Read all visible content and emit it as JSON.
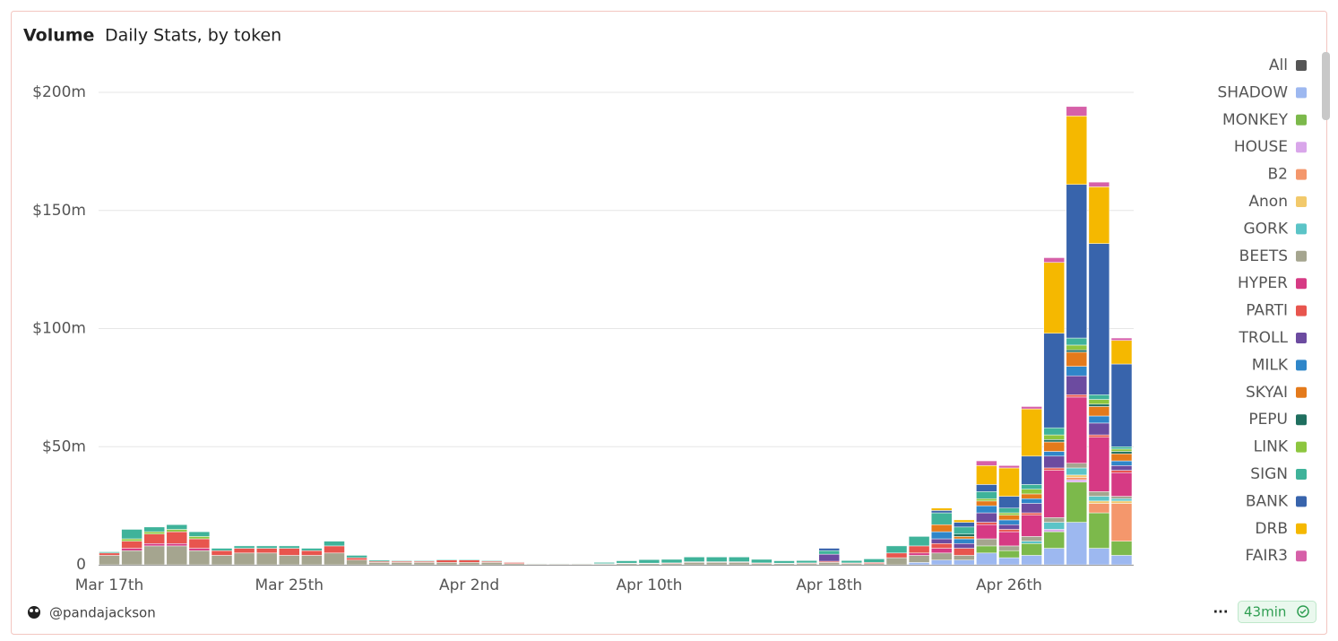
{
  "header": {
    "title": "Volume",
    "subtitle": "Daily Stats, by token"
  },
  "footer": {
    "author": "@pandajackson",
    "menu": "···",
    "refresh": "43min"
  },
  "legend_all": {
    "name": "All",
    "color": "#555555"
  },
  "chart_data": {
    "type": "stacked_bar",
    "categories": [
      "Mar 17th",
      null,
      null,
      null,
      null,
      null,
      null,
      null,
      "Mar 25th",
      null,
      null,
      null,
      null,
      null,
      null,
      null,
      "Apr 2nd",
      null,
      null,
      null,
      null,
      null,
      null,
      null,
      "Apr 10th",
      null,
      null,
      null,
      null,
      null,
      null,
      null,
      "Apr 18th",
      null,
      null,
      null,
      null,
      null,
      null,
      null,
      "Apr 26th",
      null,
      null,
      null,
      null,
      null
    ],
    "ylim": [
      0,
      210
    ],
    "yticks": [
      0,
      {
        "value": 50,
        "label": "$50m"
      },
      {
        "value": 100,
        "label": "$100m"
      },
      {
        "value": 150,
        "label": "$150m"
      },
      {
        "value": 200,
        "label": "$200m"
      }
    ],
    "grid": true,
    "legend": "right",
    "series": [
      {
        "name": "SHADOW",
        "color": "#9db8f0",
        "values": [
          0,
          0,
          0,
          0,
          0,
          0,
          0,
          0,
          0,
          0,
          0,
          0,
          0,
          0,
          0,
          0,
          0,
          0,
          0,
          0,
          0,
          0,
          0,
          0,
          0,
          0,
          0,
          0,
          0,
          0,
          0,
          0,
          0,
          0,
          0,
          0,
          1,
          2,
          2,
          5,
          3,
          4,
          7,
          18,
          7,
          4
        ]
      },
      {
        "name": "MONKEY",
        "color": "#7cb94b",
        "values": [
          0,
          0,
          0,
          0,
          0,
          0,
          0,
          0,
          0,
          0,
          0,
          0,
          0,
          0,
          0,
          0,
          0,
          0,
          0,
          0,
          0,
          0,
          0,
          0,
          0,
          0,
          0,
          0,
          0,
          0,
          0,
          0,
          0,
          0,
          0,
          0,
          0,
          0,
          0,
          3,
          3,
          5,
          7,
          17,
          15,
          6
        ]
      },
      {
        "name": "HOUSE",
        "color": "#d9a6ea",
        "values": [
          0,
          0,
          0,
          0,
          0,
          0,
          0,
          0,
          0,
          0,
          0,
          0,
          0,
          0,
          0,
          0,
          0,
          0,
          0,
          0,
          0,
          0,
          0,
          0,
          0,
          0,
          0,
          0,
          0,
          0,
          0,
          0,
          0,
          0,
          0,
          0,
          0,
          0,
          0,
          0,
          0,
          0,
          1,
          1,
          0,
          0
        ]
      },
      {
        "name": "B2",
        "color": "#f4976c",
        "values": [
          0,
          0,
          0,
          0,
          0,
          0,
          0,
          0,
          0,
          0,
          0,
          0,
          0,
          0,
          0,
          0,
          0,
          0,
          0,
          0,
          0,
          0,
          0,
          0,
          0,
          0,
          0,
          0,
          0,
          0,
          0,
          0,
          0,
          0,
          0,
          0,
          0,
          0,
          0,
          0,
          0,
          0,
          0,
          1,
          4,
          16
        ]
      },
      {
        "name": "Anon",
        "color": "#f2c96b",
        "values": [
          0,
          0,
          0,
          0,
          0,
          0,
          0,
          0,
          0,
          0,
          0,
          0,
          0,
          0,
          0,
          0,
          0,
          0,
          0,
          0,
          0,
          0,
          0,
          0,
          0,
          0,
          0,
          0,
          0,
          0,
          0,
          0,
          0,
          0,
          0,
          0,
          0,
          0,
          0,
          0,
          0,
          0,
          0,
          1,
          1,
          1
        ]
      },
      {
        "name": "GORK",
        "color": "#5bc4c7",
        "values": [
          0,
          0,
          0,
          0,
          0,
          0,
          0,
          0,
          0,
          0,
          0,
          0,
          0,
          0,
          0,
          0,
          0,
          0,
          0,
          0,
          0,
          0,
          0,
          0,
          0,
          0,
          0,
          0,
          0,
          0,
          0,
          0,
          0,
          0,
          0,
          0,
          0,
          0,
          0,
          0,
          0,
          1,
          3,
          3,
          2,
          1
        ]
      },
      {
        "name": "BEETS",
        "color": "#a5a58f",
        "values": [
          4,
          6,
          8,
          8,
          6,
          4,
          5,
          5,
          4,
          4,
          5,
          2,
          1,
          1,
          1,
          1,
          1,
          1,
          0.5,
          0.3,
          0.3,
          0.3,
          0.3,
          0.5,
          0.5,
          0.5,
          1,
          1,
          1,
          0.5,
          0.5,
          0.5,
          1,
          0.5,
          0.5,
          3,
          3,
          3,
          2,
          3,
          2,
          2,
          2,
          2,
          2,
          1
        ]
      },
      {
        "name": "HYPER",
        "color": "#d63a84",
        "values": [
          0,
          1,
          1,
          1,
          1,
          0,
          0,
          0,
          0,
          0,
          0,
          0,
          0,
          0,
          0,
          0,
          0,
          0,
          0,
          0,
          0,
          0,
          0,
          0,
          0,
          0,
          0,
          0,
          0,
          0,
          0,
          0,
          0,
          0,
          0,
          0,
          1,
          2,
          0,
          6,
          6,
          9,
          20,
          28,
          23,
          10
        ]
      },
      {
        "name": "PARTI",
        "color": "#e8554e",
        "values": [
          1,
          3,
          4,
          5,
          4,
          2,
          2,
          2,
          3,
          2,
          3,
          1,
          0.5,
          0.5,
          0.5,
          1,
          1,
          0.5,
          0.5,
          0.2,
          0.2,
          0.2,
          0.2,
          0.2,
          0.2,
          0.3,
          0.3,
          0.3,
          0.3,
          0.3,
          0.2,
          0.3,
          0.5,
          0.3,
          0.5,
          2,
          3,
          2,
          3,
          1,
          1,
          1,
          1,
          1,
          1,
          1
        ]
      },
      {
        "name": "TROLL",
        "color": "#6c4ba0",
        "values": [
          0,
          0,
          0,
          0,
          0,
          0,
          0,
          0,
          0,
          0,
          0,
          0,
          0,
          0,
          0,
          0,
          0,
          0,
          0,
          0,
          0,
          0,
          0,
          0,
          0,
          0,
          0,
          0,
          0,
          0,
          0,
          0,
          3,
          0,
          0,
          0,
          0,
          2,
          2,
          4,
          2,
          4,
          5,
          8,
          5,
          2
        ]
      },
      {
        "name": "MILK",
        "color": "#2f86c9",
        "values": [
          0,
          0,
          0,
          0,
          0,
          0,
          0,
          0,
          0,
          0,
          0,
          0,
          0,
          0,
          0,
          0,
          0,
          0,
          0,
          0,
          0,
          0,
          0,
          0,
          0,
          0,
          0,
          0,
          0,
          0,
          0,
          0,
          0,
          0,
          0,
          0,
          0,
          3,
          2,
          3,
          2,
          2,
          2,
          4,
          3,
          2
        ]
      },
      {
        "name": "SKYAI",
        "color": "#e47a1b",
        "values": [
          0,
          0,
          0,
          0,
          0,
          0,
          0,
          0,
          0,
          0,
          0,
          0,
          0,
          0,
          0,
          0,
          0,
          0,
          0,
          0,
          0,
          0,
          0,
          0,
          0,
          0,
          0,
          0,
          0,
          0,
          0,
          0,
          0,
          0,
          0,
          0,
          0,
          3,
          1,
          2,
          2,
          2,
          4,
          6,
          4,
          3
        ]
      },
      {
        "name": "PEPU",
        "color": "#1f6f5f",
        "values": [
          0,
          0,
          0,
          0,
          0,
          0,
          0,
          0,
          0,
          0,
          0,
          0,
          0,
          0,
          0,
          0,
          0,
          0,
          0,
          0,
          0,
          0,
          0,
          0,
          0,
          0,
          0,
          0,
          0,
          0,
          0,
          0,
          0,
          0,
          0,
          0,
          0,
          0,
          1,
          0,
          0,
          0,
          1,
          1,
          1,
          1
        ]
      },
      {
        "name": "LINK",
        "color": "#8dc63f",
        "values": [
          0,
          1,
          1,
          1,
          1,
          0,
          0,
          0,
          0,
          0,
          0,
          0,
          0,
          0,
          0,
          0,
          0,
          0,
          0,
          0,
          0,
          0,
          0,
          0,
          0,
          0,
          0,
          0,
          0,
          0,
          0,
          0,
          0,
          0,
          0,
          0,
          0,
          0,
          0,
          1,
          1,
          2,
          2,
          2,
          2,
          1
        ]
      },
      {
        "name": "SIGN",
        "color": "#3fb39a",
        "values": [
          0.5,
          4,
          2,
          2,
          2,
          1,
          1,
          1,
          1,
          1,
          2,
          1,
          0.5,
          0.3,
          0.3,
          0.3,
          0.3,
          0.3,
          0.2,
          0.2,
          0.2,
          0.2,
          0.5,
          1,
          1.5,
          1.5,
          2,
          2,
          2,
          1.5,
          1,
          1,
          1.5,
          1,
          1.5,
          3,
          4,
          5,
          3,
          3,
          2,
          2,
          3,
          3,
          2,
          1
        ]
      },
      {
        "name": "BANK",
        "color": "#3864ac",
        "values": [
          0,
          0,
          0,
          0,
          0,
          0,
          0,
          0,
          0,
          0,
          0,
          0,
          0,
          0,
          0,
          0,
          0,
          0,
          0,
          0,
          0,
          0,
          0,
          0,
          0,
          0,
          0,
          0,
          0,
          0,
          0,
          0,
          1,
          0,
          0,
          0,
          0,
          1,
          2,
          3,
          5,
          12,
          40,
          65,
          64,
          35
        ]
      },
      {
        "name": "DRB",
        "color": "#f5b800",
        "values": [
          0,
          0,
          0,
          0,
          0,
          0,
          0,
          0,
          0,
          0,
          0,
          0,
          0,
          0,
          0,
          0,
          0,
          0,
          0,
          0,
          0,
          0,
          0,
          0,
          0,
          0,
          0,
          0,
          0,
          0,
          0,
          0,
          0,
          0,
          0,
          0,
          0,
          1,
          1,
          8,
          12,
          20,
          30,
          29,
          24,
          10
        ]
      },
      {
        "name": "FAIR3",
        "color": "#d660a8",
        "values": [
          0,
          0,
          0,
          0,
          0,
          0,
          0,
          0,
          0,
          0,
          0,
          0,
          0,
          0,
          0,
          0,
          0,
          0,
          0,
          0,
          0,
          0,
          0,
          0,
          0,
          0,
          0,
          0,
          0,
          0,
          0,
          0,
          0,
          0,
          0,
          0,
          0,
          0,
          0,
          2,
          1,
          1,
          2,
          4,
          2,
          1
        ]
      }
    ]
  }
}
